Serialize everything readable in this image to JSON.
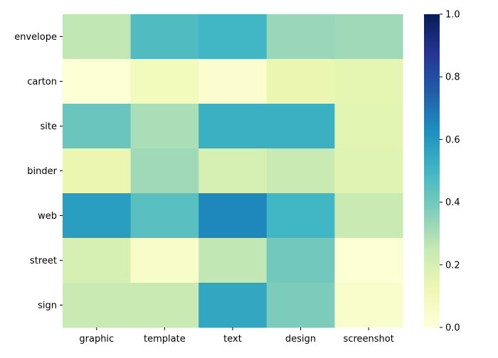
{
  "chart_data": {
    "type": "heatmap",
    "title": "",
    "xlabel": "",
    "ylabel": "",
    "x_categories": [
      "graphic",
      "template",
      "text",
      "design",
      "screenshot"
    ],
    "y_categories": [
      "envelope",
      "carton",
      "site",
      "binder",
      "web",
      "street",
      "sign"
    ],
    "values": [
      [
        0.26,
        0.47,
        0.5,
        0.33,
        0.32
      ],
      [
        0.02,
        0.09,
        0.03,
        0.13,
        0.15
      ],
      [
        0.42,
        0.3,
        0.52,
        0.52,
        0.16
      ],
      [
        0.13,
        0.32,
        0.2,
        0.24,
        0.17
      ],
      [
        0.58,
        0.45,
        0.65,
        0.5,
        0.24
      ],
      [
        0.2,
        0.05,
        0.26,
        0.4,
        0.02
      ],
      [
        0.24,
        0.24,
        0.55,
        0.38,
        0.04
      ]
    ],
    "colorbar": {
      "min": 0.0,
      "max": 1.0,
      "ticks": [
        "0.0",
        "0.2",
        "0.4",
        "0.6",
        "0.8",
        "1.0"
      ],
      "colormap": "YlGnBu"
    },
    "grid": false,
    "legend": "colorbar-right"
  }
}
